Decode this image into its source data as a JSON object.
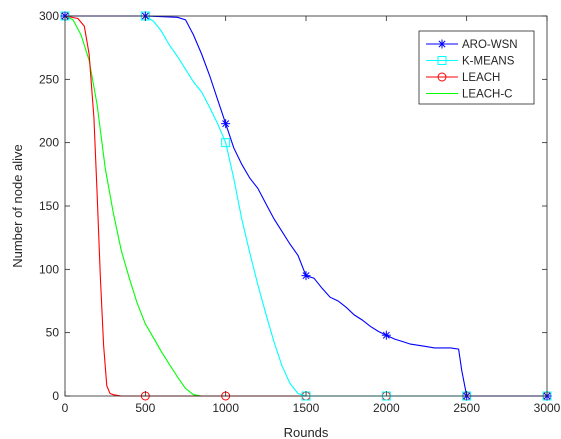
{
  "chart_data": {
    "type": "line",
    "title": "",
    "xlabel": "Rounds",
    "ylabel": "Number of node alive",
    "xlim": [
      0,
      3000
    ],
    "ylim": [
      0,
      300
    ],
    "xticks": [
      0,
      500,
      1000,
      1500,
      2000,
      2500,
      3000
    ],
    "yticks": [
      0,
      50,
      100,
      150,
      200,
      250,
      300
    ],
    "xtick_labels": [
      "0",
      "500",
      "1000",
      "1500",
      "2000",
      "2500",
      "3000"
    ],
    "ytick_labels": [
      "0",
      "50",
      "100",
      "150",
      "200",
      "250",
      "300"
    ],
    "grid": false,
    "legend_position": "top-right",
    "series": [
      {
        "name": "ARO-WSN",
        "color": "#0000ff",
        "marker": "asterisk",
        "marker_x": [
          0,
          500,
          1000,
          1500,
          2000,
          2500,
          3000
        ],
        "x": [
          0,
          500,
          700,
          750,
          800,
          850,
          900,
          950,
          1000,
          1050,
          1100,
          1150,
          1200,
          1250,
          1300,
          1350,
          1400,
          1450,
          1500,
          1550,
          1600,
          1650,
          1700,
          1750,
          1800,
          1850,
          1900,
          1950,
          2000,
          2050,
          2100,
          2150,
          2200,
          2250,
          2300,
          2350,
          2400,
          2450,
          2470,
          2500,
          3000
        ],
        "y": [
          300,
          300,
          299,
          297,
          285,
          270,
          253,
          234,
          215,
          196,
          183,
          172,
          164,
          152,
          140,
          130,
          120,
          111,
          95,
          93,
          85,
          78,
          75,
          70,
          64,
          60,
          55,
          51,
          48,
          45,
          43,
          41,
          40,
          39,
          38,
          38,
          38,
          37,
          20,
          0,
          0
        ]
      },
      {
        "name": "K-MEANS",
        "color": "#00ffff",
        "marker": "square",
        "marker_x": [
          0,
          500,
          1000,
          1500,
          2000,
          2500,
          3000
        ],
        "x": [
          0,
          500,
          550,
          600,
          650,
          700,
          750,
          800,
          850,
          900,
          950,
          1000,
          1050,
          1100,
          1150,
          1200,
          1250,
          1300,
          1350,
          1400,
          1450,
          1500,
          3000
        ],
        "y": [
          300,
          300,
          296,
          288,
          277,
          268,
          258,
          248,
          240,
          228,
          215,
          200,
          172,
          140,
          113,
          88,
          65,
          43,
          24,
          10,
          2,
          0,
          0
        ]
      },
      {
        "name": "LEACH",
        "color": "#ff0000",
        "marker": "circle",
        "marker_x": [
          0,
          500,
          1000,
          1500,
          2000,
          2500,
          3000
        ],
        "x": [
          0,
          80,
          120,
          150,
          180,
          200,
          220,
          240,
          260,
          280,
          300,
          350,
          500,
          3000
        ],
        "y": [
          300,
          298,
          292,
          270,
          220,
          160,
          95,
          40,
          8,
          2,
          1,
          0,
          0,
          0
        ]
      },
      {
        "name": "LEACH-C",
        "color": "#00ff00",
        "marker": "none",
        "marker_x": [],
        "x": [
          0,
          50,
          100,
          150,
          200,
          250,
          300,
          350,
          400,
          450,
          500,
          550,
          600,
          650,
          700,
          750,
          800,
          850,
          3000
        ],
        "y": [
          300,
          297,
          285,
          265,
          230,
          180,
          145,
          115,
          93,
          73,
          57,
          46,
          35,
          25,
          15,
          6,
          1,
          0,
          0
        ]
      }
    ]
  }
}
